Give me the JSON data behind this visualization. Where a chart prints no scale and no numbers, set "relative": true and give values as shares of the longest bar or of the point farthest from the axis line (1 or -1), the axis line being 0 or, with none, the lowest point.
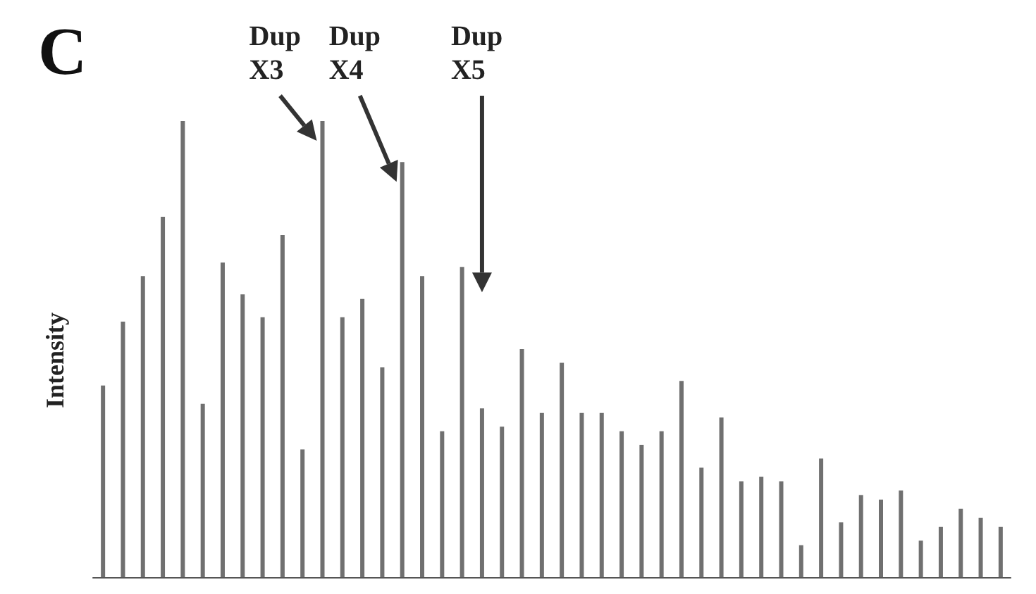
{
  "chart_data": {
    "type": "bar",
    "title": "C",
    "ylabel": "Intensity",
    "relative": true,
    "categories": [
      null,
      null,
      null,
      null,
      null,
      null,
      null,
      null,
      null,
      null,
      null,
      null,
      null,
      null,
      null,
      null,
      null,
      null,
      null,
      null,
      null,
      null,
      null,
      null,
      null,
      null,
      null,
      null,
      null,
      null,
      null,
      null,
      null,
      null,
      null,
      null,
      null,
      null,
      null,
      null,
      null,
      null,
      null,
      null,
      null,
      null
    ],
    "values": [
      0.42,
      0.56,
      0.66,
      0.79,
      1.0,
      0.38,
      0.69,
      0.62,
      0.57,
      0.75,
      0.28,
      1.0,
      0.57,
      0.61,
      0.46,
      0.91,
      0.66,
      0.32,
      0.68,
      0.37,
      0.33,
      0.5,
      0.36,
      0.47,
      0.36,
      0.36,
      0.32,
      0.29,
      0.32,
      0.43,
      0.24,
      0.35,
      0.21,
      0.22,
      0.21,
      0.07,
      0.26,
      0.12,
      0.18,
      0.17,
      0.19,
      0.08,
      0.11,
      0.15,
      0.13,
      0.11
    ],
    "color": "#707070",
    "annotations": [
      "Dup\nX3",
      "Dup\nX4",
      "Dup\nX5"
    ]
  }
}
